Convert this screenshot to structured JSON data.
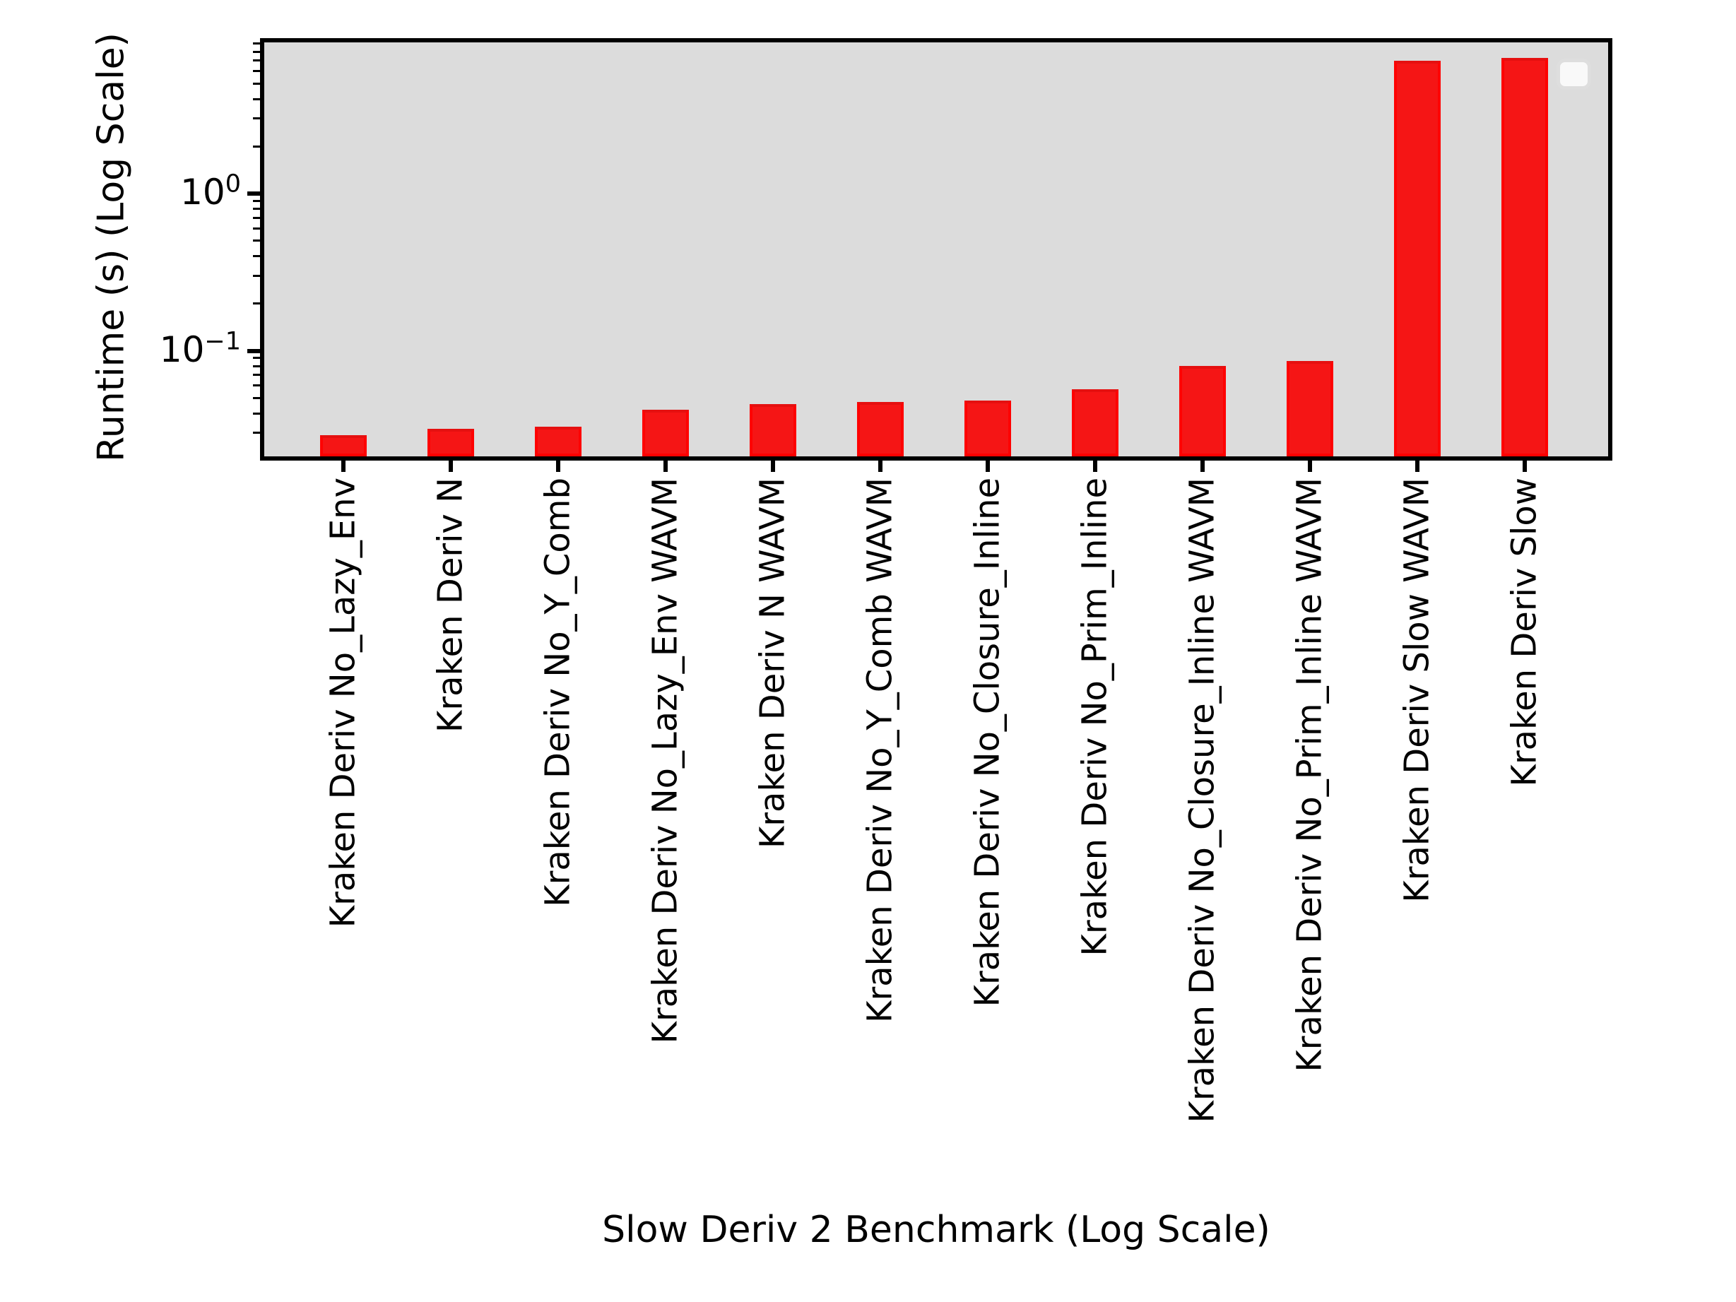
{
  "figure": {
    "background_color": "#ffffff",
    "plot_background_color": "#dcdcdc",
    "axis_color": "#000000",
    "bar_fill_color": "#f51515",
    "bar_edge_color": "#fe0202",
    "legend_box_color": "#f9f9f9",
    "legend_border_color": "#dedede"
  },
  "y_axis": {
    "label": "Runtime (s) (Log Scale)",
    "scale": "log",
    "major_ticks": [
      {
        "value": 1,
        "label_base": "10",
        "label_exp": "0"
      },
      {
        "value": 0.1,
        "label_base": "10",
        "label_exp": "−1"
      }
    ]
  },
  "x_axis": {
    "label": "Slow Deriv 2 Benchmark (Log Scale)"
  },
  "legend": {
    "visible": true,
    "entries": []
  },
  "chart_data": {
    "type": "bar",
    "title": "",
    "xlabel": "Slow Deriv 2 Benchmark (Log Scale)",
    "ylabel": "Runtime (s) (Log Scale)",
    "yscale": "log",
    "ylim": [
      0.022,
      9.3
    ],
    "grid": false,
    "legend_position": "upper right",
    "bar_color": "red",
    "categories": [
      "Kraken Deriv No_Lazy_Env",
      "Kraken Deriv N",
      "Kraken Deriv No_Y_Comb",
      "Kraken Deriv No_Lazy_Env WAVM",
      "Kraken Deriv N WAVM",
      "Kraken Deriv No_Y_Comb WAVM",
      "Kraken Deriv No_Closure_Inline",
      "Kraken Deriv No_Prim_Inline",
      "Kraken Deriv No_Closure_Inline WAVM",
      "Kraken Deriv No_Prim_Inline WAVM",
      "Kraken Deriv Slow WAVM",
      "Kraken Deriv Slow"
    ],
    "values": [
      0.029,
      0.032,
      0.033,
      0.042,
      0.046,
      0.047,
      0.048,
      0.057,
      0.08,
      0.086,
      7.0,
      7.3
    ]
  }
}
